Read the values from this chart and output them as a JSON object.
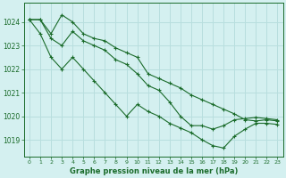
{
  "title": "Graphe pression niveau de la mer (hPa)",
  "bg_color": "#d4f0f0",
  "grid_color": "#b8dede",
  "line_color": "#1a6b2a",
  "x_ticks": [
    0,
    1,
    2,
    3,
    4,
    5,
    6,
    7,
    8,
    9,
    10,
    11,
    12,
    13,
    14,
    15,
    16,
    17,
    18,
    19,
    20,
    21,
    22,
    23
  ],
  "y_ticks": [
    1019,
    1020,
    1021,
    1022,
    1023,
    1024
  ],
  "ylim": [
    1018.3,
    1024.8
  ],
  "xlim": [
    -0.5,
    23.5
  ],
  "series": [
    [
      1024.1,
      1024.1,
      1023.5,
      1024.3,
      1024.0,
      1023.5,
      1023.3,
      1023.2,
      1022.9,
      1022.7,
      1022.5,
      1021.8,
      1021.6,
      1021.4,
      1021.2,
      1020.9,
      1020.7,
      1020.5,
      1020.3,
      1020.1,
      1019.85,
      1019.8,
      1019.85,
      1019.8
    ],
    [
      1024.1,
      1024.1,
      1023.3,
      1023.0,
      1023.6,
      1023.2,
      1023.0,
      1022.8,
      1022.4,
      1022.2,
      1021.8,
      1021.3,
      1021.1,
      1020.6,
      1020.0,
      1019.6,
      1019.6,
      1019.45,
      1019.6,
      1019.85,
      1019.9,
      1019.95,
      1019.9,
      1019.85
    ],
    [
      1024.1,
      1023.5,
      1022.5,
      1022.0,
      1022.5,
      1022.0,
      1021.5,
      1021.0,
      1020.5,
      1020.0,
      1020.5,
      1020.2,
      1020.0,
      1019.7,
      1019.5,
      1019.3,
      1019.0,
      1018.75,
      1018.65,
      1019.15,
      1019.45,
      1019.7,
      1019.7,
      1019.65
    ]
  ]
}
